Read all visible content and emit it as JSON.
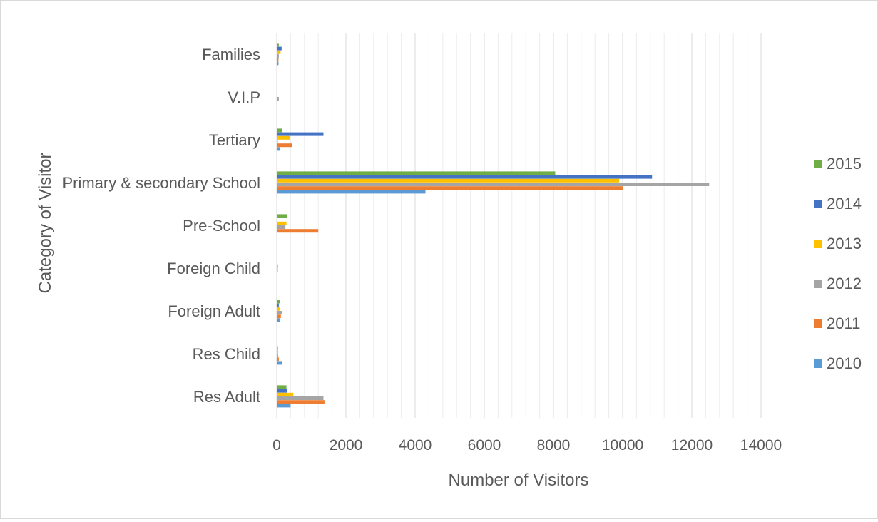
{
  "chart_data": {
    "type": "bar",
    "orientation": "horizontal",
    "title": "",
    "xlabel": "Number of Visitors",
    "ylabel": "Category of Visitor",
    "xlim": [
      0,
      14000
    ],
    "x_ticks": [
      "0",
      "2000",
      "4000",
      "6000",
      "8000",
      "10000",
      "12000",
      "14000"
    ],
    "grid": true,
    "legend_position": "right",
    "categories": [
      "Res Adult",
      "Res Child",
      "Foreign Adult",
      "Foreign Child",
      "Pre-School",
      "Primary & secondary School",
      "Tertiary",
      "V.I.P",
      "Families"
    ],
    "series": [
      {
        "name": "2010",
        "color": "#5b9bd5",
        "values": [
          400,
          150,
          100,
          10,
          20,
          4300,
          100,
          20,
          50
        ]
      },
      {
        "name": "2011",
        "color": "#ed7d31",
        "values": [
          1380,
          60,
          120,
          20,
          1200,
          10000,
          450,
          0,
          50
        ]
      },
      {
        "name": "2012",
        "color": "#a5a5a5",
        "values": [
          1350,
          40,
          150,
          30,
          250,
          12500,
          30,
          60,
          60
        ]
      },
      {
        "name": "2013",
        "color": "#ffc000",
        "values": [
          480,
          40,
          80,
          40,
          280,
          9900,
          380,
          10,
          110
        ]
      },
      {
        "name": "2014",
        "color": "#4472c4",
        "values": [
          300,
          30,
          60,
          20,
          20,
          10850,
          1350,
          10,
          140
        ]
      },
      {
        "name": "2015",
        "color": "#70ad47",
        "values": [
          280,
          20,
          100,
          20,
          300,
          8050,
          150,
          10,
          60
        ]
      }
    ],
    "legend_order": [
      "2015",
      "2014",
      "2013",
      "2012",
      "2011",
      "2010"
    ]
  }
}
